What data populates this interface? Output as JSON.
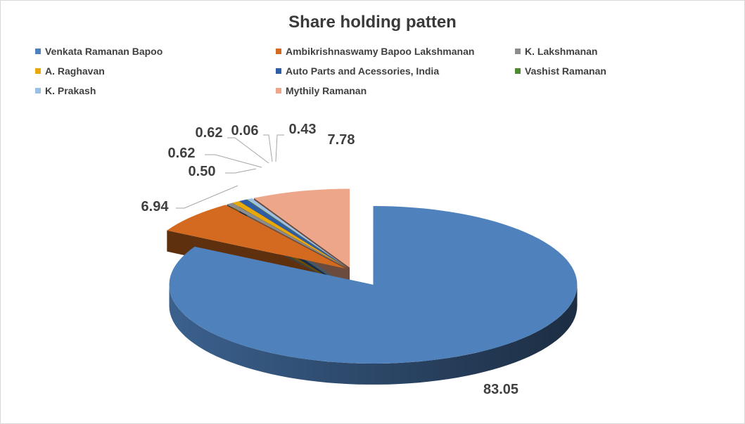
{
  "chart_data": {
    "type": "pie",
    "title": "Share holding patten",
    "legend_position": "top",
    "slices": [
      {
        "label": "Venkata Ramanan Bapoo",
        "value": 83.05,
        "display": "83.05",
        "color": "#4f81bd"
      },
      {
        "label": "Ambikrishnaswamy Bapoo Lakshmanan",
        "value": 6.94,
        "display": "6.94",
        "color": "#d46a1f"
      },
      {
        "label": "K. Lakshmanan",
        "value": 0.5,
        "display": "0.50",
        "color": "#8c8c8c"
      },
      {
        "label": "A. Raghavan",
        "value": 0.62,
        "display": "0.62",
        "color": "#e8a80a"
      },
      {
        "label": "Auto Parts and Acessories, India",
        "value": 0.62,
        "display": "0.62",
        "color": "#2e5da8"
      },
      {
        "label": "Vashist Ramanan",
        "value": 0.06,
        "display": "0.06",
        "color": "#4e8a2e"
      },
      {
        "label": "K. Prakash",
        "value": 0.43,
        "display": "0.43",
        "color": "#9cc0e4"
      },
      {
        "label": "Mythily Ramanan",
        "value": 7.78,
        "display": "7.78",
        "color": "#eea68a"
      }
    ]
  }
}
